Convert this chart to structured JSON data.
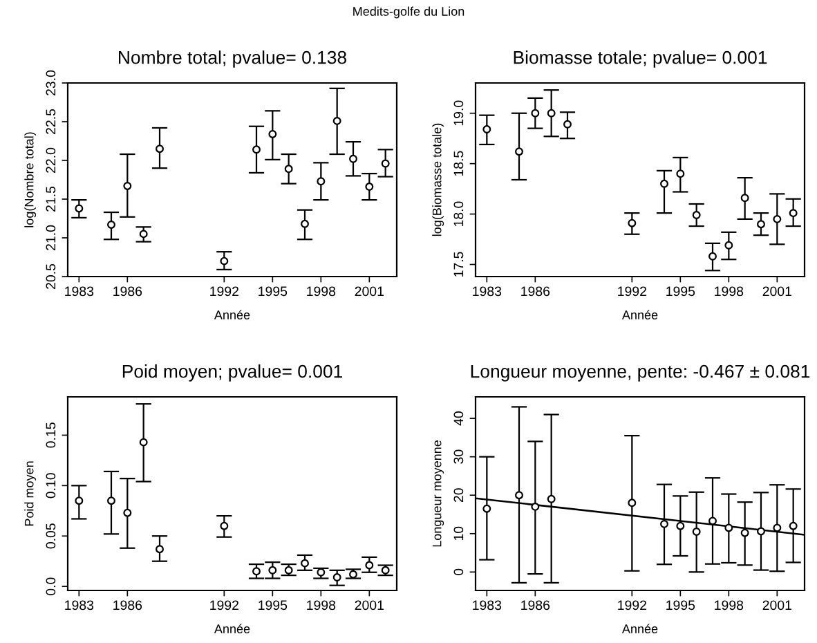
{
  "chart_data": [
    {
      "type": "scatter",
      "title": "Nombre total; pvalue= 0.138",
      "xlabel": "Année",
      "ylabel": "log(Nombre total)",
      "annotations": [
        "Medits-golfe du Lion"
      ],
      "marker": "circle",
      "grid": false,
      "xlim": [
        1982.3,
        2002.7
      ],
      "xticks": [
        1983,
        1986,
        1992,
        1995,
        1998,
        2001
      ],
      "ylim": [
        20.5,
        23.0
      ],
      "yticks": [
        20.5,
        {
          "value": 21,
          "label": "21.0"
        },
        21.5,
        {
          "value": 22,
          "label": "22.0"
        },
        22.5,
        {
          "value": 23,
          "label": "23.0"
        }
      ],
      "series": [
        {
          "color": "#000000",
          "x": [
            1983,
            1985,
            1986,
            1987,
            1988,
            1992,
            1994,
            1995,
            1996,
            1997,
            1998,
            1999,
            2000,
            2001,
            2002
          ],
          "values": [
            21.38,
            21.17,
            21.67,
            21.05,
            22.15,
            20.7,
            22.14,
            22.34,
            21.89,
            21.18,
            21.73,
            22.51,
            22.02,
            21.66,
            21.96
          ],
          "errors": [
            [
              21.26,
              21.49
            ],
            [
              20.98,
              21.33
            ],
            [
              21.27,
              22.08
            ],
            [
              20.95,
              21.14
            ],
            [
              21.9,
              22.42
            ],
            [
              20.59,
              20.82
            ],
            [
              21.84,
              22.44
            ],
            [
              22.01,
              22.64
            ],
            [
              21.7,
              22.08
            ],
            [
              20.98,
              21.36
            ],
            [
              21.49,
              21.97
            ],
            [
              22.08,
              22.93
            ],
            [
              21.8,
              22.24
            ],
            [
              21.49,
              21.83
            ],
            [
              21.79,
              22.14
            ]
          ]
        }
      ]
    },
    {
      "type": "scatter",
      "title": "Biomasse totale; pvalue= 0.001",
      "xlabel": "Année",
      "ylabel": "log(Biomasse totale)",
      "marker": "circle",
      "grid": false,
      "xlim": [
        1982.3,
        2002.7
      ],
      "xticks": [
        1983,
        1986,
        1992,
        1995,
        1998,
        2001
      ],
      "ylim": [
        17.38,
        19.3
      ],
      "yticks": [
        17.5,
        {
          "value": 18,
          "label": "18.0"
        },
        18.5,
        {
          "value": 19,
          "label": "19.0"
        }
      ],
      "series": [
        {
          "color": "#000000",
          "x": [
            1983,
            1985,
            1986,
            1987,
            1988,
            1992,
            1994,
            1995,
            1996,
            1997,
            1998,
            1999,
            2000,
            2001,
            2002
          ],
          "values": [
            18.84,
            18.62,
            19.0,
            19.0,
            18.89,
            17.91,
            18.3,
            18.4,
            17.99,
            17.58,
            17.69,
            18.16,
            17.9,
            17.95,
            18.01
          ],
          "errors": [
            [
              18.69,
              18.98
            ],
            [
              18.34,
              19.0
            ],
            [
              18.85,
              19.15
            ],
            [
              18.77,
              19.23
            ],
            [
              18.75,
              19.01
            ],
            [
              17.8,
              18.01
            ],
            [
              18.01,
              18.43
            ],
            [
              18.22,
              18.56
            ],
            [
              17.88,
              18.1
            ],
            [
              17.44,
              17.71
            ],
            [
              17.55,
              17.82
            ],
            [
              17.95,
              18.36
            ],
            [
              17.79,
              18.01
            ],
            [
              17.7,
              18.2
            ],
            [
              17.88,
              18.15
            ]
          ]
        }
      ]
    },
    {
      "type": "scatter",
      "title": "Poid moyen; pvalue= 0.001",
      "xlabel": "Année",
      "ylabel": "Poid moyen",
      "marker": "circle",
      "grid": false,
      "xlim": [
        1982.3,
        2002.7
      ],
      "xticks": [
        1983,
        1986,
        1992,
        1995,
        1998,
        2001
      ],
      "ylim": [
        -0.004,
        0.188
      ],
      "yticks": [
        {
          "value": 0,
          "label": "0.0"
        },
        0.05,
        {
          "value": 0.1,
          "label": "0.10"
        },
        0.15
      ],
      "series": [
        {
          "color": "#000000",
          "x": [
            1983,
            1985,
            1986,
            1987,
            1988,
            1992,
            1994,
            1995,
            1996,
            1997,
            1998,
            1999,
            2000,
            2001,
            2002
          ],
          "values": [
            0.085,
            0.085,
            0.073,
            0.143,
            0.037,
            0.06,
            0.015,
            0.016,
            0.016,
            0.023,
            0.014,
            0.009,
            0.012,
            0.021,
            0.016
          ],
          "errors": [
            [
              0.067,
              0.1
            ],
            [
              0.052,
              0.114
            ],
            [
              0.038,
              0.107
            ],
            [
              0.104,
              0.181
            ],
            [
              0.025,
              0.05
            ],
            [
              0.049,
              0.07
            ],
            [
              0.008,
              0.022
            ],
            [
              0.008,
              0.024
            ],
            [
              0.011,
              0.022
            ],
            [
              0.016,
              0.031
            ],
            [
              0.008,
              0.018
            ],
            [
              0.001,
              0.016
            ],
            [
              0.008,
              0.017
            ],
            [
              0.014,
              0.029
            ],
            [
              0.011,
              0.021
            ]
          ]
        }
      ]
    },
    {
      "type": "scatter",
      "title": "Longueur moyenne, pente: -0.467 ± 0.081",
      "xlabel": "Année",
      "ylabel": "Longueur moyenne",
      "marker": "circle",
      "grid": false,
      "xlim": [
        1982.3,
        2002.7
      ],
      "xticks": [
        1983,
        1986,
        1992,
        1995,
        1998,
        2001
      ],
      "ylim": [
        -4.8,
        45.6
      ],
      "yticks": [
        0,
        10,
        20,
        30,
        40
      ],
      "series": [
        {
          "color": "#000000",
          "x": [
            1983,
            1985,
            1986,
            1987,
            1992,
            1994,
            1995,
            1996,
            1997,
            1998,
            1999,
            2000,
            2001,
            2002
          ],
          "values": [
            16.5,
            20,
            17,
            19,
            18,
            12.5,
            12,
            10.5,
            13.3,
            11.5,
            10.2,
            10.6,
            11.5,
            12
          ],
          "errors": [
            [
              3.2,
              30
            ],
            [
              -2.8,
              43
            ],
            [
              -0.5,
              34
            ],
            [
              -2.8,
              41
            ],
            [
              0.3,
              35.5
            ],
            [
              2,
              22.8
            ],
            [
              4.2,
              19.8
            ],
            [
              0,
              20.8
            ],
            [
              2.1,
              24.5
            ],
            [
              2.4,
              20.3
            ],
            [
              1.8,
              18.2
            ],
            [
              0.5,
              20.7
            ],
            [
              0.2,
              22.7
            ],
            [
              2.5,
              21.6
            ]
          ]
        },
        {
          "type": "line",
          "marker": "none",
          "color": "#000000",
          "x": [
            1982.3,
            2002.7
          ],
          "values": [
            19.2,
            9.7
          ]
        }
      ]
    }
  ]
}
